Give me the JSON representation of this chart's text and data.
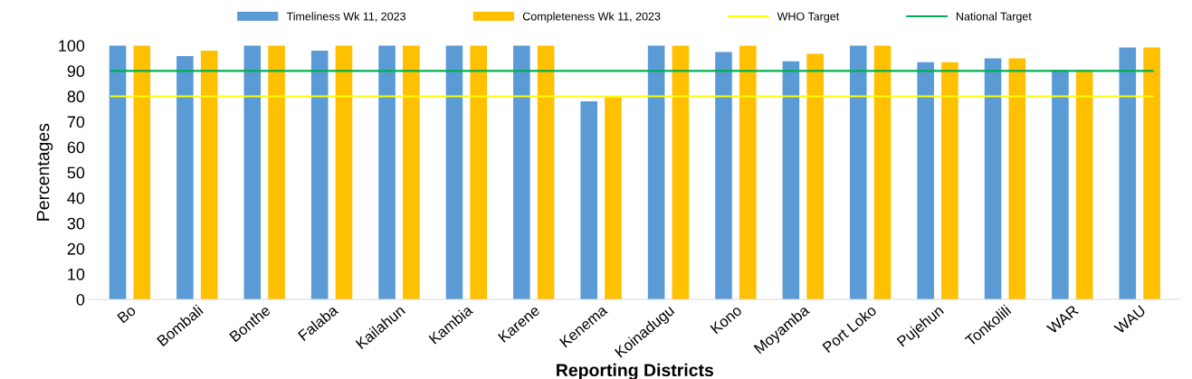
{
  "chart_data": {
    "type": "bar",
    "xlabel": "Reporting Districts",
    "ylabel": "Percentages",
    "categories": [
      "Bo",
      "Bombali",
      "Bonthe",
      "Falaba",
      "Kailahun",
      "Kambia",
      "Karene",
      "Kenema",
      "Koinadugu",
      "Kono",
      "Moyamba",
      "Port Loko",
      "Pujehun",
      "Tonkolili",
      "WAR",
      "WAU"
    ],
    "series": [
      {
        "name": "Timeliness Wk 11, 2023",
        "color": "#5b9bd5",
        "values": [
          100,
          95.8,
          100,
          98,
          100,
          100,
          100,
          78,
          100,
          97.4,
          93.8,
          100,
          93.4,
          94.9,
          90.4,
          99.2
        ]
      },
      {
        "name": "Completeness Wk 11, 2023",
        "color": "#ffc000",
        "values": [
          100,
          98,
          100,
          100,
          100,
          100,
          100,
          79.6,
          100,
          100,
          96.7,
          100,
          93.4,
          94.9,
          90.4,
          99.2
        ]
      }
    ],
    "ref_lines": [
      {
        "axis": "y",
        "value": 80,
        "label": "WHO Target",
        "color": "#ffff00"
      },
      {
        "axis": "y",
        "value": 90,
        "label": "National Target",
        "color": "#00b050"
      }
    ],
    "ylim": [
      0,
      100
    ],
    "yticks": [
      0,
      10,
      20,
      30,
      40,
      50,
      60,
      70,
      80,
      90,
      100
    ],
    "grid": false,
    "legend": "top"
  }
}
